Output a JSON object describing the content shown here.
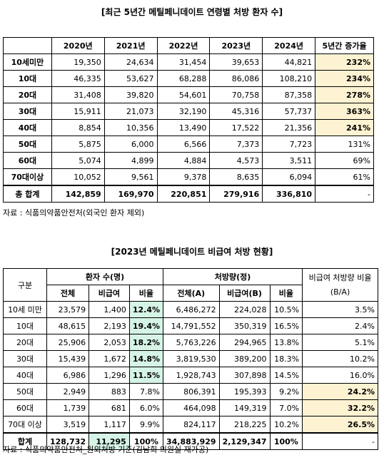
{
  "table1": {
    "title": "[최근 5년간 메틸페니데이트 연령별 처방 환자 수]",
    "headers": [
      "",
      "2020년",
      "2021년",
      "2022년",
      "2023년",
      "2024년",
      "5년간 증가율"
    ],
    "rows": [
      {
        "label": "10세미만",
        "values": [
          "19,350",
          "24,634",
          "31,454",
          "39,653",
          "44,821"
        ],
        "rate": "232%",
        "hl": true
      },
      {
        "label": "10대",
        "values": [
          "46,335",
          "53,627",
          "68,288",
          "86,086",
          "108,210"
        ],
        "rate": "234%",
        "hl": true
      },
      {
        "label": "20대",
        "values": [
          "31,408",
          "39,820",
          "54,601",
          "70,758",
          "87,358"
        ],
        "rate": "278%",
        "hl": true
      },
      {
        "label": "30대",
        "values": [
          "15,911",
          "21,073",
          "32,190",
          "45,316",
          "57,737"
        ],
        "rate": "363%",
        "hl": true
      },
      {
        "label": "40대",
        "values": [
          "8,854",
          "10,356",
          "13,490",
          "17,522",
          "21,356"
        ],
        "rate": "241%",
        "hl": true
      },
      {
        "label": "50대",
        "values": [
          "5,875",
          "6,000",
          "6,566",
          "7,373",
          "7,723"
        ],
        "rate": "131%",
        "hl": false
      },
      {
        "label": "60대",
        "values": [
          "5,074",
          "4,899",
          "4,884",
          "4,573",
          "3,511"
        ],
        "rate": "69%",
        "hl": false
      },
      {
        "label": "70대이상",
        "values": [
          "10,052",
          "9,561",
          "9,378",
          "8,635",
          "6,094"
        ],
        "rate": "61%",
        "hl": false
      }
    ],
    "total": {
      "label": "총 합계",
      "values": [
        "142,859",
        "169,970",
        "220,851",
        "279,916",
        "336,810"
      ],
      "rate": "-"
    },
    "source": "자료 : 식품의약품안전처(외국인 환자 제외)"
  },
  "table2": {
    "title": "[2023년 메틸페니데이트 비급여 처방 현황]",
    "h_group": "구분",
    "h_patients": "환자 수(명)",
    "h_rx": "처방량(정)",
    "h_ratio": "비급여 처방량 비율(B/A)",
    "sub": [
      "전체",
      "비급여",
      "비율",
      "전체(A)",
      "비급여(B)",
      "비율"
    ],
    "rows": [
      {
        "label": "10세 미만",
        "p": [
          "23,579",
          "1,400",
          "12.4%"
        ],
        "r": [
          "6,486,272",
          "224,028",
          "10.5%"
        ],
        "ratio": "3.5%",
        "g": true,
        "y": false
      },
      {
        "label": "10대",
        "p": [
          "48,615",
          "2,193",
          "19.4%"
        ],
        "r": [
          "14,791,552",
          "350,319",
          "16.5%"
        ],
        "ratio": "2.4%",
        "g": true,
        "y": false
      },
      {
        "label": "20대",
        "p": [
          "25,906",
          "2,053",
          "18.2%"
        ],
        "r": [
          "5,763,226",
          "294,965",
          "13.8%"
        ],
        "ratio": "5.1%",
        "g": true,
        "y": false
      },
      {
        "label": "30대",
        "p": [
          "15,439",
          "1,672",
          "14.8%"
        ],
        "r": [
          "3,819,530",
          "389,200",
          "18.3%"
        ],
        "ratio": "10.2%",
        "g": true,
        "y": false
      },
      {
        "label": "40대",
        "p": [
          "6,986",
          "1,296",
          "11.5%"
        ],
        "r": [
          "1,928,743",
          "307,898",
          "14.5%"
        ],
        "ratio": "16.0%",
        "g": true,
        "y": false
      },
      {
        "label": "50대",
        "p": [
          "2,949",
          "883",
          "7.8%"
        ],
        "r": [
          "806,391",
          "195,393",
          "9.2%"
        ],
        "ratio": "24.2%",
        "g": false,
        "y": true
      },
      {
        "label": "60대",
        "p": [
          "1,739",
          "681",
          "6.0%"
        ],
        "r": [
          "464,098",
          "149,319",
          "7.0%"
        ],
        "ratio": "32.2%",
        "g": false,
        "y": true
      },
      {
        "label": "70대 이상",
        "p": [
          "3,519",
          "1,117",
          "9.9%"
        ],
        "r": [
          "824,117",
          "218,225",
          "10.2%"
        ],
        "ratio": "26.5%",
        "g": false,
        "y": true
      }
    ],
    "total": {
      "label": "합계",
      "p": [
        "128,732",
        "11,295",
        "100%"
      ],
      "r": [
        "34,883,929",
        "2,129,347",
        "100%"
      ],
      "ratio": "-"
    },
    "source": "자료 : 식품의약품안전처_원외처방 기준(김남희 의원실 재가공)"
  },
  "colors": {
    "highlight_yellow": "#fdf3d3",
    "highlight_green": "#d6f4e6"
  }
}
